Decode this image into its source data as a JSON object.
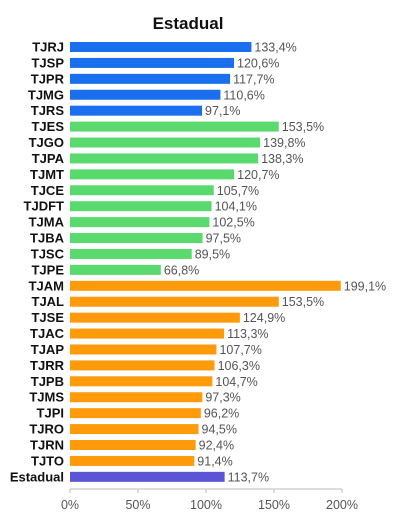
{
  "chart_data": {
    "type": "bar",
    "orientation": "horizontal",
    "title": "Estadual",
    "xlabel": "",
    "ylabel": "",
    "xlim": [
      0,
      200
    ],
    "ticks": [
      "0%",
      "50%",
      "100%",
      "150%",
      "200%"
    ],
    "grid": false,
    "legend": "none",
    "colors": {
      "group1": "#1a6fee",
      "group2": "#5ada6e",
      "group3": "#ff9a0a",
      "total": "#5c54d6"
    },
    "categories": [
      "TJRJ",
      "TJSP",
      "TJPR",
      "TJMG",
      "TJRS",
      "TJES",
      "TJGO",
      "TJPA",
      "TJMT",
      "TJCE",
      "TJDFT",
      "TJMA",
      "TJBA",
      "TJSC",
      "TJPE",
      "TJAM",
      "TJAL",
      "TJSE",
      "TJAC",
      "TJAP",
      "TJRR",
      "TJPB",
      "TJMS",
      "TJPI",
      "TJRO",
      "TJRN",
      "TJTO",
      "Estadual"
    ],
    "values": [
      133.4,
      120.6,
      117.7,
      110.6,
      97.1,
      153.5,
      139.8,
      138.3,
      120.7,
      105.7,
      104.1,
      102.5,
      97.5,
      89.5,
      66.8,
      199.1,
      153.5,
      124.9,
      113.3,
      107.7,
      106.3,
      104.7,
      97.3,
      96.2,
      94.5,
      92.4,
      91.4,
      113.7
    ],
    "value_labels": [
      "133,4%",
      "120,6%",
      "117,7%",
      "110,6%",
      "97,1%",
      "153,5%",
      "139,8%",
      "138,3%",
      "120,7%",
      "105,7%",
      "104,1%",
      "102,5%",
      "97,5%",
      "89,5%",
      "66,8%",
      "199,1%",
      "153,5%",
      "124,9%",
      "113,3%",
      "107,7%",
      "106,3%",
      "104,7%",
      "97,3%",
      "96,2%",
      "94,5%",
      "92,4%",
      "91,4%",
      "113,7%"
    ],
    "groups": [
      "group1",
      "group1",
      "group1",
      "group1",
      "group1",
      "group2",
      "group2",
      "group2",
      "group2",
      "group2",
      "group2",
      "group2",
      "group2",
      "group2",
      "group2",
      "group3",
      "group3",
      "group3",
      "group3",
      "group3",
      "group3",
      "group3",
      "group3",
      "group3",
      "group3",
      "group3",
      "group3",
      "total"
    ]
  }
}
